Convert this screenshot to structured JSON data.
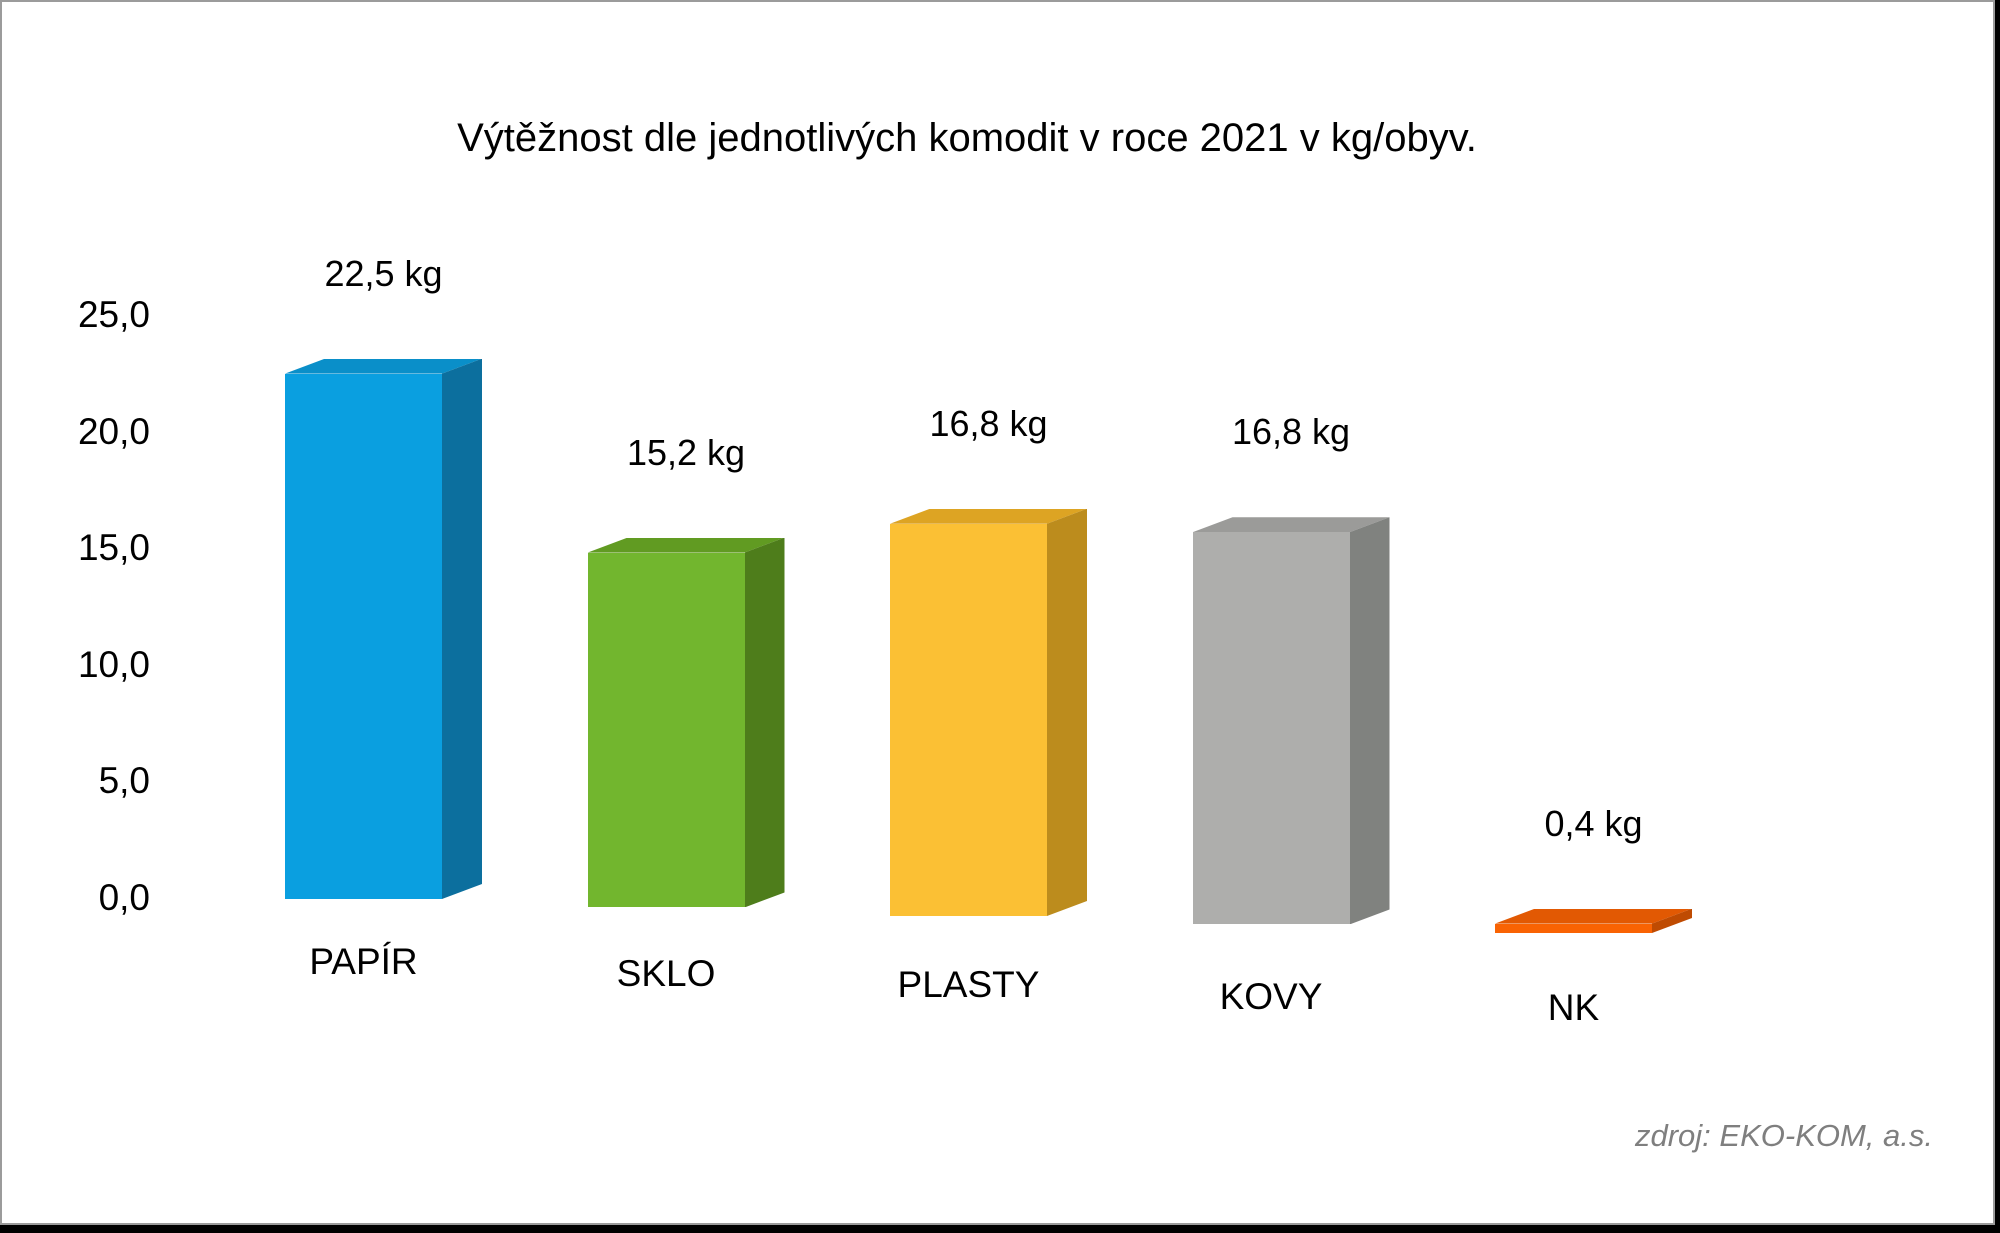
{
  "frame": {
    "canvas_background": "#ffffff",
    "border_color": "#9b9b9b",
    "outer_edge_color": "#000000"
  },
  "chart_data": {
    "type": "bar",
    "projection": "3d",
    "title": "Výtěžnost dle jednotlivých komodit v roce 2021 v kg/obyv.",
    "categories": [
      "PAPÍR",
      "SKLO",
      "PLASTY",
      "KOVY",
      "NK"
    ],
    "values": [
      22.5,
      15.2,
      16.8,
      16.8,
      0.4
    ],
    "value_labels": [
      "22,5 kg",
      "15,2 kg",
      "16,8 kg",
      "16,8 kg",
      "0,4 kg"
    ],
    "unit": "kg",
    "xlabel": "",
    "ylabel": "",
    "ylim": [
      0,
      25
    ],
    "ytick_values": [
      0,
      5,
      10,
      15,
      20,
      25
    ],
    "ytick_labels": [
      "0,0",
      "5,0",
      "10,0",
      "15,0",
      "20,0",
      "25,0"
    ],
    "grid": false,
    "legend": false,
    "bar_colors": [
      {
        "front": "#0a9fe0",
        "top": "#0a8fc9",
        "side": "#0c6f9e"
      },
      {
        "front": "#72b62e",
        "top": "#619b22",
        "side": "#4e7d1b"
      },
      {
        "front": "#fbc034",
        "top": "#dda423",
        "side": "#bc8c1d"
      },
      {
        "front": "#aeaeac",
        "top": "#9b9b99",
        "side": "#80827f"
      },
      {
        "front": "#f96303",
        "top": "#e25903",
        "side": "#bf4b02"
      }
    ],
    "source": "zdroj: EKO-KOM, a.s."
  }
}
